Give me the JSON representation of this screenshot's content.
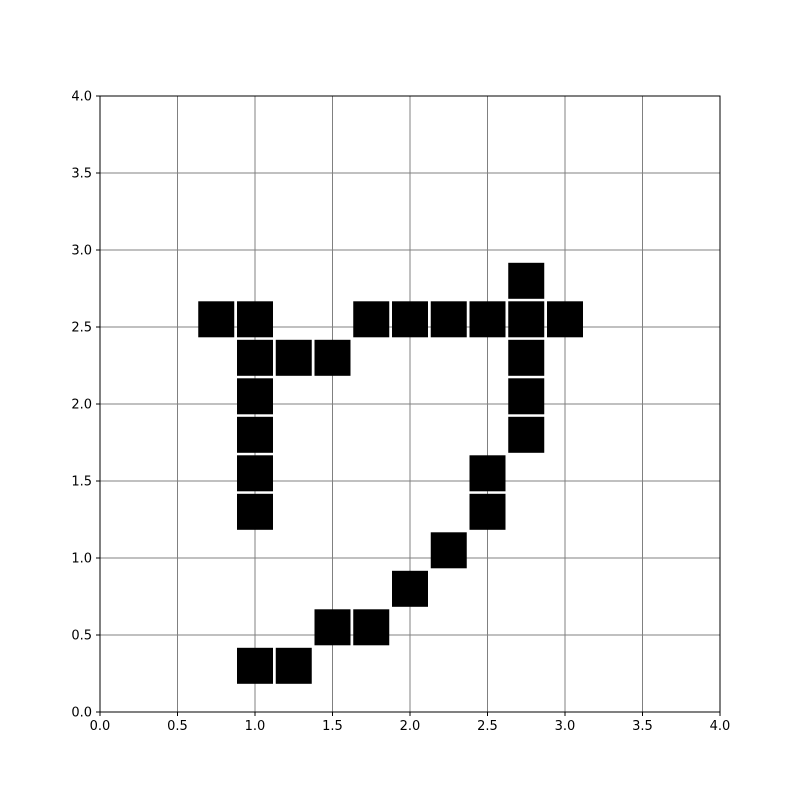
{
  "chart_data": {
    "type": "scatter",
    "title": "",
    "xlabel": "",
    "ylabel": "",
    "xlim": [
      0.0,
      4.0
    ],
    "ylim": [
      0.0,
      4.0
    ],
    "grid": true,
    "marker": "square",
    "x_ticks": [
      "0.0",
      "0.5",
      "1.0",
      "1.5",
      "2.0",
      "2.5",
      "3.0",
      "3.5",
      "4.0"
    ],
    "y_ticks": [
      "0.0",
      "0.5",
      "1.0",
      "1.5",
      "2.0",
      "2.5",
      "3.0",
      "3.5",
      "4.0"
    ],
    "series": [
      {
        "color": "#000000",
        "points": [
          {
            "x": 1.0,
            "y": 0.3
          },
          {
            "x": 1.25,
            "y": 0.3
          },
          {
            "x": 1.5,
            "y": 0.55
          },
          {
            "x": 1.75,
            "y": 0.55
          },
          {
            "x": 2.0,
            "y": 0.8
          },
          {
            "x": 2.25,
            "y": 1.05
          },
          {
            "x": 2.5,
            "y": 1.3
          },
          {
            "x": 2.5,
            "y": 1.55
          },
          {
            "x": 2.75,
            "y": 1.8
          },
          {
            "x": 2.75,
            "y": 2.05
          },
          {
            "x": 2.75,
            "y": 2.3
          },
          {
            "x": 2.75,
            "y": 2.55
          },
          {
            "x": 2.75,
            "y": 2.8
          },
          {
            "x": 3.0,
            "y": 2.55
          },
          {
            "x": 2.5,
            "y": 2.55
          },
          {
            "x": 2.25,
            "y": 2.55
          },
          {
            "x": 2.0,
            "y": 2.55
          },
          {
            "x": 1.75,
            "y": 2.55
          },
          {
            "x": 1.5,
            "y": 2.3
          },
          {
            "x": 1.25,
            "y": 2.3
          },
          {
            "x": 1.0,
            "y": 2.3
          },
          {
            "x": 1.0,
            "y": 2.05
          },
          {
            "x": 1.0,
            "y": 1.8
          },
          {
            "x": 1.0,
            "y": 1.55
          },
          {
            "x": 1.0,
            "y": 1.3
          },
          {
            "x": 1.0,
            "y": 2.55
          },
          {
            "x": 0.75,
            "y": 2.55
          }
        ]
      }
    ]
  },
  "colors": {
    "grid": "#808080",
    "axes": "#000000",
    "marker": "#000000",
    "background": "#ffffff"
  }
}
